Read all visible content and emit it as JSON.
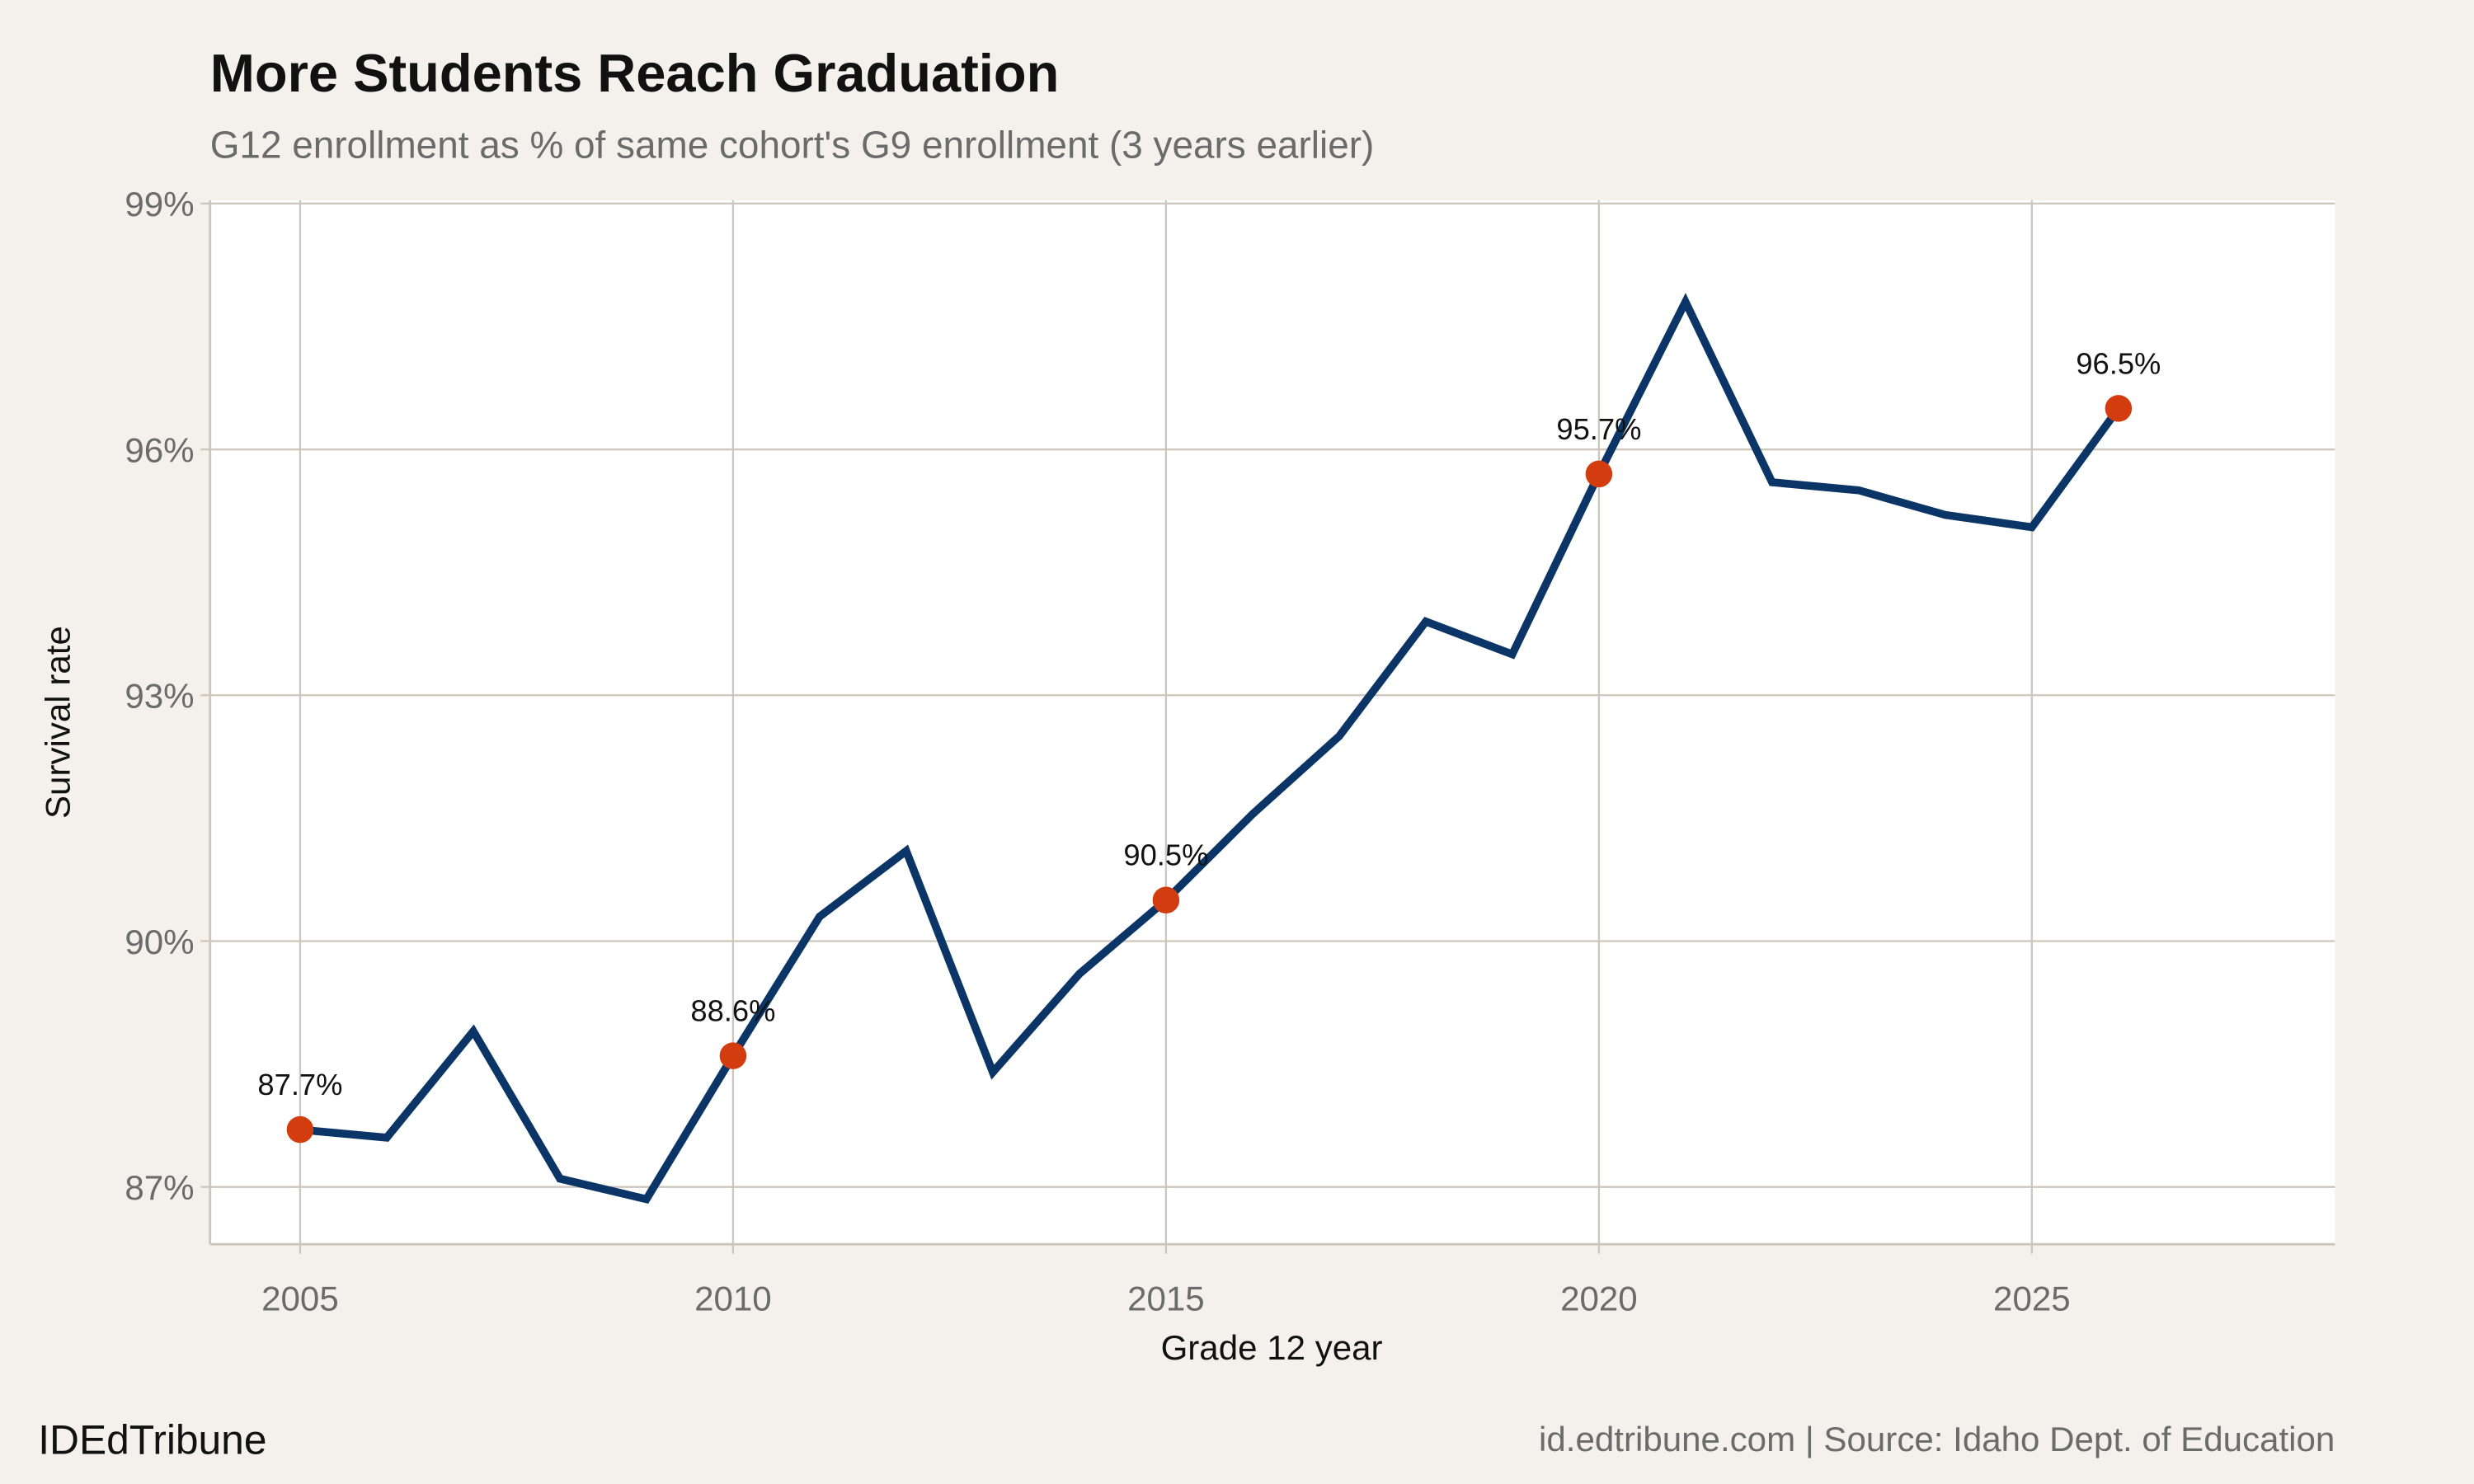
{
  "chart_data": {
    "type": "line",
    "title": "More Students Reach Graduation",
    "subtitle": "G12 enrollment as % of same cohort's G9 enrollment (3 years earlier)",
    "xlabel": "Grade 12 year",
    "ylabel": "Survival rate",
    "x": [
      2005,
      2006,
      2007,
      2008,
      2009,
      2010,
      2011,
      2012,
      2013,
      2014,
      2015,
      2016,
      2017,
      2018,
      2019,
      2020,
      2021,
      2022,
      2023,
      2024,
      2025,
      2026
    ],
    "values": [
      87.7,
      87.6,
      88.9,
      87.1,
      86.85,
      88.6,
      90.3,
      91.1,
      88.4,
      89.6,
      90.5,
      91.55,
      92.5,
      93.9,
      93.5,
      95.7,
      97.8,
      95.6,
      95.5,
      95.2,
      95.05,
      96.5
    ],
    "highlighted": [
      {
        "x": 2005,
        "y": 87.7,
        "label": "87.7%"
      },
      {
        "x": 2010,
        "y": 88.6,
        "label": "88.6%"
      },
      {
        "x": 2015,
        "y": 90.5,
        "label": "90.5%"
      },
      {
        "x": 2020,
        "y": 95.7,
        "label": "95.7%"
      },
      {
        "x": 2026,
        "y": 96.5,
        "label": "96.5%"
      }
    ],
    "xlim": [
      2003.96,
      2028.5
    ],
    "ylim": [
      86.3,
      99.04
    ],
    "xticks": [
      2005,
      2010,
      2015,
      2020,
      2025
    ],
    "xtick_labels": [
      "2005",
      "2010",
      "2015",
      "2020",
      "2025"
    ],
    "yticks": [
      87,
      90,
      93,
      96,
      99
    ],
    "ytick_labels": [
      "87%",
      "90%",
      "93%",
      "96%",
      "99%"
    ],
    "grid": true,
    "colors": {
      "line": "#0b3566",
      "point": "#d33c0e",
      "grid": "#cdc6bb",
      "background": "#f4f1ec",
      "panel": "#ffffff"
    }
  },
  "footer": {
    "brand": "IDEdTribune",
    "source": "id.edtribune.com | Source: Idaho Dept. of Education"
  }
}
